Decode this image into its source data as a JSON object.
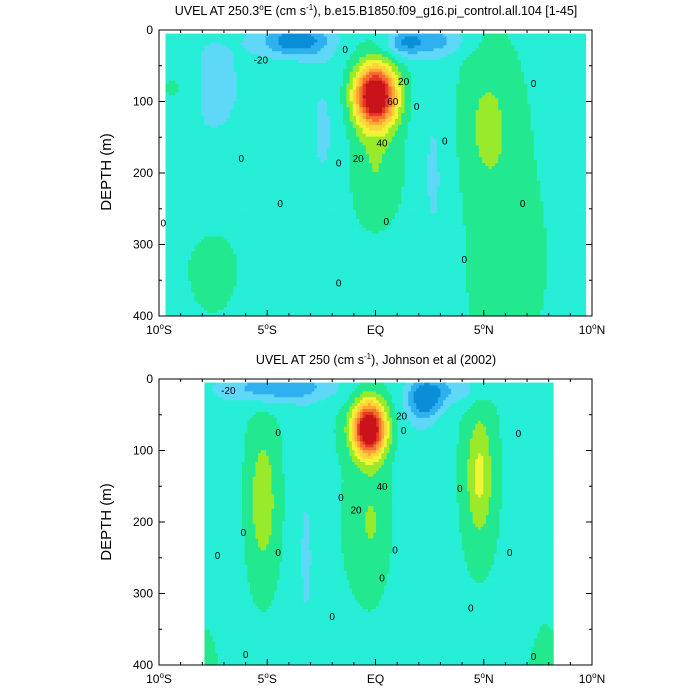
{
  "chart_data": [
    {
      "type": "contour",
      "title_prefix": "UVEL AT 250.3",
      "title_deg": "o",
      "title_mid": "E (cm s",
      "title_exp": "-1",
      "title_suffix": "), b.e15.B1850.f09_g16.pi_control.all.104 [1-45]",
      "ylabel": "DEPTH (m)",
      "xlim": [
        -10,
        10
      ],
      "ylim": [
        400,
        0
      ],
      "yticks": [
        0,
        100,
        200,
        300,
        400
      ],
      "xticks": [
        {
          "value": -10,
          "num": "10",
          "deg": "o",
          "hemi": "S"
        },
        {
          "value": -5,
          "num": "5",
          "deg": "o",
          "hemi": "S"
        },
        {
          "value": 0,
          "num": "EQ",
          "deg": "",
          "hemi": ""
        },
        {
          "value": 5,
          "num": "5",
          "deg": "o",
          "hemi": "N"
        },
        {
          "value": 10,
          "num": "10",
          "deg": "o",
          "hemi": "N"
        }
      ],
      "contour_interval": 10,
      "data_extent": {
        "lon": [
          -9.7,
          9.7
        ],
        "depth": [
          5,
          400
        ]
      },
      "core": {
        "lon": 0.0,
        "depth": 90,
        "max": 95
      },
      "contour_labels": [
        {
          "text": "-20",
          "lon": -5.3,
          "depth": 42
        },
        {
          "text": "0",
          "lon": -1.4,
          "depth": 27
        },
        {
          "text": "20",
          "lon": 1.3,
          "depth": 72
        },
        {
          "text": "60",
          "lon": 0.8,
          "depth": 100
        },
        {
          "text": "40",
          "lon": 0.3,
          "depth": 158
        },
        {
          "text": "20",
          "lon": -0.8,
          "depth": 180
        },
        {
          "text": "0",
          "lon": -1.7,
          "depth": 186
        },
        {
          "text": "0",
          "lon": 1.9,
          "depth": 107
        },
        {
          "text": "0",
          "lon": 3.2,
          "depth": 155
        },
        {
          "text": "0",
          "lon": 7.3,
          "depth": 75
        },
        {
          "text": "0",
          "lon": -6.2,
          "depth": 180
        },
        {
          "text": "0",
          "lon": -4.4,
          "depth": 243
        },
        {
          "text": "0",
          "lon": -9.8,
          "depth": 270
        },
        {
          "text": "0",
          "lon": 0.5,
          "depth": 268
        },
        {
          "text": "0",
          "lon": 4.1,
          "depth": 321
        },
        {
          "text": "0",
          "lon": 6.8,
          "depth": 243
        },
        {
          "text": "0",
          "lon": -1.7,
          "depth": 354
        }
      ]
    },
    {
      "type": "contour",
      "title_prefix": "UVEL AT 250 (cm s",
      "title_deg": "",
      "title_mid": "",
      "title_exp": "-1",
      "title_suffix": "), Johnson et al (2002)",
      "ylabel": "DEPTH (m)",
      "xlim": [
        -10,
        10
      ],
      "ylim": [
        400,
        0
      ],
      "yticks": [
        0,
        100,
        200,
        300,
        400
      ],
      "xticks": [
        {
          "value": -10,
          "num": "10",
          "deg": "o",
          "hemi": "S"
        },
        {
          "value": -5,
          "num": "5",
          "deg": "o",
          "hemi": "S"
        },
        {
          "value": 0,
          "num": "EQ",
          "deg": "",
          "hemi": ""
        },
        {
          "value": 5,
          "num": "5",
          "deg": "o",
          "hemi": "N"
        },
        {
          "value": 10,
          "num": "10",
          "deg": "o",
          "hemi": "N"
        }
      ],
      "contour_interval": 10,
      "data_extent": {
        "lon": [
          -7.9,
          8.2
        ],
        "depth": [
          5,
          400
        ]
      },
      "core": {
        "lon": -0.3,
        "depth": 70,
        "max": 90
      },
      "contour_labels": [
        {
          "text": "-20",
          "lon": -6.8,
          "depth": 16
        },
        {
          "text": "20",
          "lon": 1.2,
          "depth": 52
        },
        {
          "text": "0",
          "lon": 1.3,
          "depth": 72
        },
        {
          "text": "40",
          "lon": 0.3,
          "depth": 150
        },
        {
          "text": "20",
          "lon": -0.9,
          "depth": 183
        },
        {
          "text": "0",
          "lon": -1.6,
          "depth": 166
        },
        {
          "text": "0",
          "lon": -4.5,
          "depth": 75
        },
        {
          "text": "0",
          "lon": -6.1,
          "depth": 215
        },
        {
          "text": "0",
          "lon": -7.3,
          "depth": 247
        },
        {
          "text": "0",
          "lon": -4.5,
          "depth": 243
        },
        {
          "text": "0",
          "lon": -6.0,
          "depth": 385
        },
        {
          "text": "0",
          "lon": 0.9,
          "depth": 239
        },
        {
          "text": "0",
          "lon": 0.3,
          "depth": 278
        },
        {
          "text": "0",
          "lon": -2.0,
          "depth": 332
        },
        {
          "text": "0",
          "lon": 3.9,
          "depth": 153
        },
        {
          "text": "0",
          "lon": 6.6,
          "depth": 76
        },
        {
          "text": "0",
          "lon": 6.2,
          "depth": 243
        },
        {
          "text": "0",
          "lon": 4.4,
          "depth": 320
        },
        {
          "text": "0",
          "lon": 7.3,
          "depth": 388
        }
      ]
    }
  ]
}
